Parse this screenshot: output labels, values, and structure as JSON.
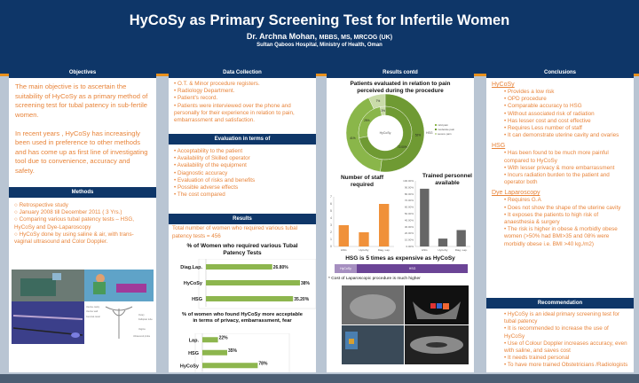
{
  "header": {
    "title": "HyCoSy as Primary Screening Test for Infertile Women",
    "author": "Dr. Archna Mohan,",
    "degrees": "MBBS, MS, MRCOG (UK)",
    "affiliation": "Sultan Qaboos Hospital, Ministry of Health, Oman"
  },
  "objectives": {
    "heading": "Objectives",
    "p1": "The main objective is to ascertain the suitability of HyCoSy as a primary method of screening test for tubal patency in sub-fertile women.",
    "p2": "In recent years , HyCoSy has increasingly been used in preference to other methods and has come up as first line of investigating tool due to convenience, accuracy and safety."
  },
  "methods": {
    "heading": "Methods",
    "items": [
      "Retrospective study",
      "January 2008 till December 2011 ( 3 Yrs.)",
      "Comparing various tubal patency tests – HSG, HyCoSy and Dye-Laparoscopy",
      "HyCoSy done by using saline & air, with trans-vaginal ultrasound  and Color Doppler."
    ],
    "diagram_labels": [
      "Uterine cavity",
      "Uterine wall",
      "Cervical canal",
      "Vagina",
      "Fallopian tube",
      "Ovary",
      "Balloon",
      "Ultrasound probe"
    ]
  },
  "data_collection": {
    "heading": "Data Collection",
    "items": [
      "O.T. & Minor procedure registers.",
      "Radiology Department.",
      "Patient's record.",
      "Patients were interviewed over the phone and personally for their experience in relation to pain, embarrassment and satisfaction."
    ]
  },
  "evaluation": {
    "heading": "Evaluation in terms of",
    "items": [
      "Acceptability to the patient",
      "Availability of Skilled operator",
      "Availability of the equipment",
      "Diagnostic accuracy",
      "Evaluation of risks and benefits",
      "Possible adverse effects",
      "The cost compared"
    ]
  },
  "results": {
    "heading": "Results",
    "text": "Total number of women who required various tubal patency tests = 456"
  },
  "results_contd": {
    "heading": "Results contd",
    "cost_title": "HSG is 5 times as expensive as HyCoSy",
    "cost_bar": {
      "labels": [
        "HyCoSy",
        "HSG"
      ],
      "values": [
        1,
        5
      ],
      "colors": [
        "#a68fc0",
        "#6b4496"
      ]
    },
    "footnote": "* Cost of Laparoscopic procedure is much higher"
  },
  "conclusions": {
    "heading": "Conclusions",
    "groups": [
      {
        "title": "HyCoSy",
        "items": [
          "Provides a low risk",
          "OPD procedure",
          "Comparable accuracy to HSG",
          "Without associated risk of radiation",
          "Has lesser cost and cost effective",
          "Requires Less number of staff",
          "It can demonstrate uterine cavity and ovaries"
        ]
      },
      {
        "title": "HSG",
        "items": [
          "Has been found to be much more painful compared to HyCoSy",
          "With lesser privacy & more embarrassment",
          "Incurs radiation burden to the patient and operator both"
        ]
      },
      {
        "title": "Dye Laparoscopy",
        "items": [
          "Requires G.A",
          "Does not show the shape of the uterine cavity",
          "It exposes the patients to high risk of anaesthesia & surgery",
          "The risk is higher in obese & morbidly obese women (>50% had BMI>35 and 08% were morbidly obese i.e. BMI >40 kg./m2)"
        ]
      }
    ]
  },
  "recommendation": {
    "heading": "Recommendation",
    "items": [
      "HyCoSy is an ideal primary screening test for tubal patency",
      "It is recommended to increase the use of HyCoSy",
      "Use of Colour Doppler increases accuracy, even with saline, and saves cost",
      "It needs trained personal",
      "To have more trained Obstetricians /Radiologists"
    ]
  },
  "chart_data": [
    {
      "type": "bar",
      "orientation": "horizontal",
      "title": "% of Women who required various Tubal Patency Tests",
      "categories": [
        "Diag.Lap.",
        "HyCoSy",
        "HSG"
      ],
      "values": [
        26.8,
        38,
        35.2
      ],
      "labels": [
        "26.80%",
        "38%",
        "35.20%"
      ],
      "xlim": [
        0,
        38
      ],
      "color": "#8db64e"
    },
    {
      "type": "bar",
      "orientation": "horizontal",
      "title": "% of women who found HyCoSy more acceptable in terms of privacy, embarrassment, fear",
      "categories": [
        "Lap.",
        "HSG",
        "HyCoSy"
      ],
      "values": [
        22,
        35,
        78
      ],
      "labels": [
        "22%",
        "35%",
        "78%"
      ],
      "xlim": [
        0,
        100
      ],
      "color": "#8db64e"
    },
    {
      "type": "pie",
      "variant": "donut",
      "title": "Patients evaluated in relation to pain perceived during the procedure",
      "legend": [
        "mild pain",
        "moderate pain",
        "severe pain"
      ],
      "colors": [
        "#8ab64a",
        "#6f9a33",
        "#c9dba8"
      ],
      "series": [
        {
          "name": "HSG",
          "values": [
            41,
            52,
            7
          ],
          "labels": [
            "41%",
            "52%",
            "7%"
          ]
        },
        {
          "name": "HyCoSy",
          "values": [
            25,
            72,
            3
          ],
          "labels": [
            "25%",
            "72.00%",
            "3%"
          ]
        }
      ],
      "legend_position": "right"
    },
    {
      "type": "bar",
      "title": "Number of staff required",
      "categories": [
        "HSG",
        "HyCoSy",
        "Diag. Lap."
      ],
      "values": [
        3,
        2,
        6
      ],
      "ylim": [
        0,
        7
      ],
      "yticks": [
        "0",
        "1",
        "2",
        "3",
        "4",
        "5",
        "6",
        "7"
      ],
      "color": "#f0913a"
    },
    {
      "type": "bar",
      "title": "Trained personnel available",
      "categories": [
        "HSG",
        "HyCoSy",
        "Diag. Lap."
      ],
      "values": [
        88,
        12,
        25
      ],
      "ylim": [
        0,
        100
      ],
      "yticks": [
        "0.00%",
        "10.00%",
        "20.00%",
        "30.00%",
        "40.00%",
        "50.00%",
        "60.00%",
        "70.00%",
        "80.00%",
        "90.00%",
        "100.00%"
      ],
      "color": "#666666"
    }
  ]
}
